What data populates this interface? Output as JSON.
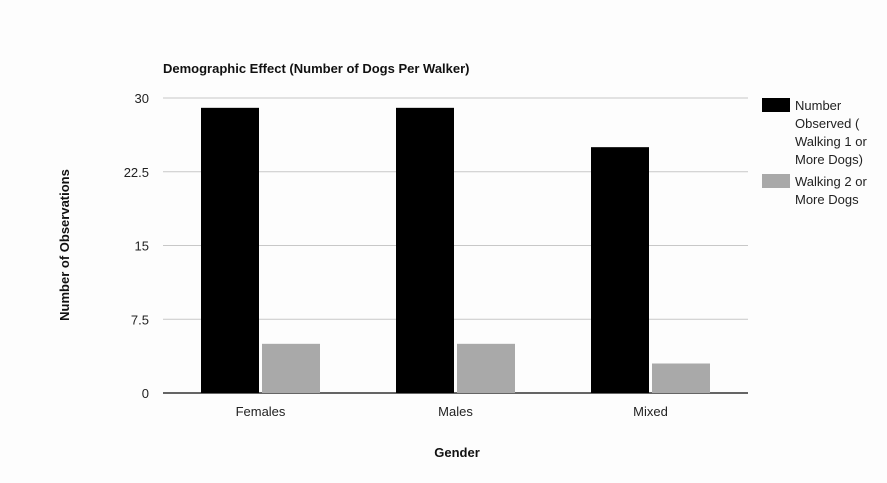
{
  "chart_data": {
    "type": "bar",
    "title": "Demographic Effect (Number of Dogs Per Walker)",
    "xlabel": "Gender",
    "ylabel": "Number of Observations",
    "categories": [
      "Females",
      "Males",
      "Mixed"
    ],
    "series": [
      {
        "name": "Number Observed ( Walking 1 or More Dogs)",
        "legend_lines": [
          "Number",
          "Observed (",
          "Walking 1 or",
          "More Dogs)"
        ],
        "color": "#000000",
        "values": [
          29,
          29,
          25
        ]
      },
      {
        "name": "Walking 2 or More Dogs",
        "legend_lines": [
          "Walking 2 or",
          "More Dogs"
        ],
        "color": "#a9a9a9",
        "values": [
          5,
          5,
          3
        ]
      }
    ],
    "ylim": [
      0,
      30
    ],
    "yticks": [
      0,
      7.5,
      15,
      22.5,
      30
    ],
    "ytick_labels": [
      "0",
      "7.5",
      "15",
      "22.5",
      "30"
    ],
    "grid": true,
    "legend_position": "right"
  }
}
